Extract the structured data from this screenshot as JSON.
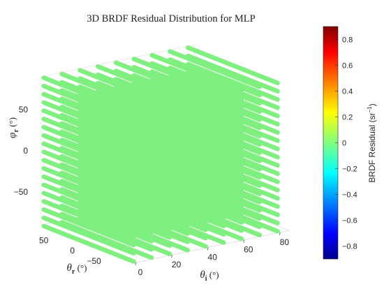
{
  "chart_data": {
    "type": "scatter",
    "title": "3D BRDF Residual Distribution for MLP",
    "point_color": "#7ff07f",
    "x_axis": {
      "symbol": "θ",
      "subscript": "i",
      "unit": " (°)",
      "ticks": [
        0,
        20,
        40,
        60,
        80
      ],
      "range": [
        0,
        85
      ]
    },
    "y_axis": {
      "symbol": "θ",
      "subscript": "r",
      "unit": " (°)",
      "ticks": [
        -50,
        0,
        50
      ],
      "tick_labels": [
        "−50",
        "0",
        "50"
      ],
      "range": [
        -85,
        85
      ]
    },
    "z_axis": {
      "symbol": "φ",
      "subscript": "r",
      "unit": " (°)",
      "ticks": [
        -50,
        0,
        50
      ],
      "tick_labels": [
        "−50",
        "0",
        "50"
      ],
      "range": [
        -90,
        90
      ]
    },
    "grid": {
      "theta_i_values": [
        0,
        10,
        20,
        30,
        40,
        50,
        60,
        70,
        80
      ],
      "theta_r_range": [
        -85,
        85
      ],
      "phi_r_values": [
        -90,
        -80,
        -70,
        -60,
        -50,
        -40,
        -30,
        -20,
        -10,
        0,
        10,
        20,
        30,
        40,
        50,
        60,
        70,
        80,
        90
      ],
      "residual": 0
    },
    "colorbar": {
      "label": "BRDF Residual (sr",
      "label_sup": "−1",
      "label_end": ")",
      "range": [
        -0.9,
        0.9
      ],
      "ticks": [
        -0.8,
        -0.6,
        -0.4,
        -0.2,
        0,
        0.2,
        0.4,
        0.6,
        0.8
      ],
      "tick_labels": [
        "−0.8",
        "−0.6",
        "−0.4",
        "−0.2",
        "0",
        "0.2",
        "0.4",
        "0.6",
        "0.8"
      ],
      "colormap": "jet",
      "colormap_stops": [
        "#00008f",
        "#0000ff",
        "#00ffff",
        "#ffff00",
        "#ff0000",
        "#800000"
      ]
    }
  }
}
